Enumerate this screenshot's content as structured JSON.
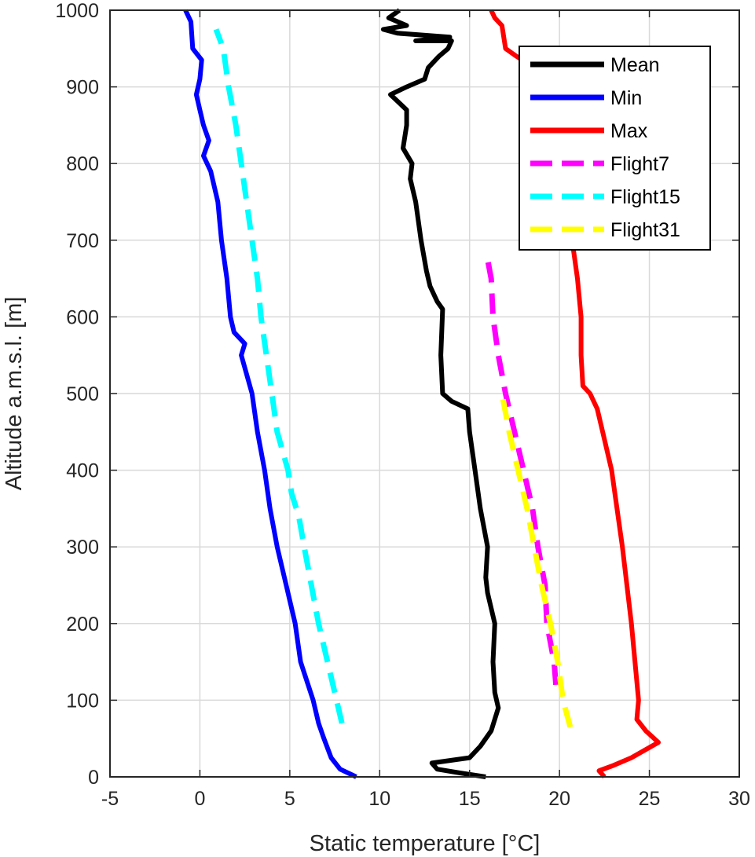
{
  "chart_data": {
    "type": "line",
    "xlabel": "Static temperature [°C]",
    "ylabel": "Altitude a.m.s.l. [m]",
    "xlim": [
      -5,
      30
    ],
    "ylim": [
      0,
      1000
    ],
    "xticks": [
      -5,
      0,
      5,
      10,
      15,
      20,
      25,
      30
    ],
    "yticks": [
      0,
      100,
      200,
      300,
      400,
      500,
      600,
      700,
      800,
      900,
      1000
    ],
    "xtick_labels": [
      "-5",
      "0",
      "5",
      "10",
      "15",
      "20",
      "25",
      "30"
    ],
    "ytick_labels": [
      "0",
      "100",
      "200",
      "300",
      "400",
      "500",
      "600",
      "700",
      "800",
      "900",
      "1000"
    ],
    "grid": true,
    "legend_position": "top-right",
    "series": [
      {
        "name": "Mean",
        "color": "#000000",
        "style": "solid",
        "points": [
          [
            15.9,
            0
          ],
          [
            14.5,
            5
          ],
          [
            13.2,
            10
          ],
          [
            12.9,
            18
          ],
          [
            15.0,
            25
          ],
          [
            15.6,
            40
          ],
          [
            16.2,
            60
          ],
          [
            16.6,
            90
          ],
          [
            16.4,
            110
          ],
          [
            16.3,
            150
          ],
          [
            16.4,
            200
          ],
          [
            16.0,
            240
          ],
          [
            15.9,
            260
          ],
          [
            16.0,
            300
          ],
          [
            15.6,
            350
          ],
          [
            15.3,
            400
          ],
          [
            15.0,
            450
          ],
          [
            14.9,
            480
          ],
          [
            14.0,
            490
          ],
          [
            13.5,
            500
          ],
          [
            13.4,
            550
          ],
          [
            13.5,
            610
          ],
          [
            13.2,
            620
          ],
          [
            12.8,
            640
          ],
          [
            12.6,
            660
          ],
          [
            12.3,
            700
          ],
          [
            12.0,
            750
          ],
          [
            11.7,
            780
          ],
          [
            11.8,
            800
          ],
          [
            11.3,
            820
          ],
          [
            11.5,
            850
          ],
          [
            11.5,
            870
          ],
          [
            10.6,
            890
          ],
          [
            11.5,
            900
          ],
          [
            12.5,
            910
          ],
          [
            12.7,
            925
          ],
          [
            13.3,
            940
          ],
          [
            13.8,
            950
          ],
          [
            14.0,
            960
          ],
          [
            12.0,
            960
          ],
          [
            13.9,
            965
          ],
          [
            11.0,
            970
          ],
          [
            10.2,
            975
          ],
          [
            11.5,
            980
          ],
          [
            10.5,
            990
          ],
          [
            11.1,
            1000
          ]
        ]
      },
      {
        "name": "Min",
        "color": "#0000ff",
        "style": "solid",
        "points": [
          [
            8.7,
            0
          ],
          [
            7.8,
            10
          ],
          [
            7.3,
            25
          ],
          [
            6.9,
            50
          ],
          [
            6.6,
            70
          ],
          [
            6.3,
            100
          ],
          [
            5.6,
            150
          ],
          [
            5.3,
            200
          ],
          [
            4.8,
            250
          ],
          [
            4.3,
            300
          ],
          [
            3.9,
            350
          ],
          [
            3.6,
            400
          ],
          [
            3.2,
            450
          ],
          [
            2.9,
            500
          ],
          [
            2.3,
            550
          ],
          [
            2.5,
            565
          ],
          [
            1.9,
            580
          ],
          [
            1.7,
            600
          ],
          [
            1.5,
            650
          ],
          [
            1.2,
            700
          ],
          [
            1.0,
            750
          ],
          [
            0.6,
            790
          ],
          [
            0.2,
            810
          ],
          [
            0.5,
            830
          ],
          [
            0.2,
            850
          ],
          [
            0.0,
            870
          ],
          [
            -0.2,
            890
          ],
          [
            0.0,
            910
          ],
          [
            0.1,
            935
          ],
          [
            -0.4,
            950
          ],
          [
            -0.5,
            985
          ],
          [
            -0.8,
            1000
          ]
        ]
      },
      {
        "name": "Max",
        "color": "#ff0000",
        "style": "solid",
        "points": [
          [
            22.5,
            0
          ],
          [
            22.2,
            8
          ],
          [
            23.0,
            15
          ],
          [
            24.0,
            25
          ],
          [
            25.5,
            45
          ],
          [
            24.8,
            60
          ],
          [
            24.3,
            75
          ],
          [
            24.4,
            100
          ],
          [
            24.0,
            200
          ],
          [
            23.5,
            300
          ],
          [
            22.9,
            400
          ],
          [
            22.4,
            450
          ],
          [
            22.1,
            480
          ],
          [
            21.7,
            500
          ],
          [
            21.3,
            510
          ],
          [
            21.2,
            550
          ],
          [
            21.2,
            600
          ],
          [
            21.0,
            650
          ],
          [
            20.7,
            700
          ],
          [
            20.9,
            750
          ],
          [
            20.0,
            800
          ],
          [
            19.5,
            850
          ],
          [
            19.0,
            900
          ],
          [
            18.3,
            930
          ],
          [
            17.6,
            940
          ],
          [
            17.0,
            950
          ],
          [
            16.8,
            980
          ],
          [
            16.4,
            990
          ],
          [
            16.2,
            1000
          ]
        ]
      },
      {
        "name": "Flight7",
        "color": "#ff00ff",
        "style": "dashed",
        "points": [
          [
            19.8,
            120
          ],
          [
            19.7,
            150
          ],
          [
            19.3,
            200
          ],
          [
            19.2,
            250
          ],
          [
            18.8,
            300
          ],
          [
            18.5,
            350
          ],
          [
            18.0,
            400
          ],
          [
            17.5,
            450
          ],
          [
            17.0,
            500
          ],
          [
            16.6,
            550
          ],
          [
            16.3,
            600
          ],
          [
            16.2,
            650
          ],
          [
            16.0,
            675
          ]
        ]
      },
      {
        "name": "Flight15",
        "color": "#00ffff",
        "style": "dashed",
        "points": [
          [
            7.9,
            70
          ],
          [
            7.5,
            110
          ],
          [
            7.1,
            150
          ],
          [
            6.6,
            200
          ],
          [
            6.2,
            250
          ],
          [
            5.8,
            300
          ],
          [
            5.5,
            340
          ],
          [
            5.1,
            370
          ],
          [
            4.9,
            400
          ],
          [
            4.3,
            450
          ],
          [
            4.0,
            500
          ],
          [
            3.7,
            550
          ],
          [
            3.4,
            600
          ],
          [
            3.2,
            650
          ],
          [
            2.9,
            700
          ],
          [
            2.6,
            750
          ],
          [
            2.3,
            800
          ],
          [
            2.0,
            850
          ],
          [
            1.6,
            900
          ],
          [
            1.3,
            950
          ],
          [
            0.9,
            975
          ]
        ]
      },
      {
        "name": "Flight31",
        "color": "#ffff00",
        "style": "dashed",
        "points": [
          [
            20.6,
            65
          ],
          [
            20.2,
            100
          ],
          [
            19.9,
            150
          ],
          [
            19.5,
            200
          ],
          [
            19.0,
            250
          ],
          [
            18.6,
            300
          ],
          [
            18.2,
            350
          ],
          [
            17.7,
            400
          ],
          [
            17.2,
            450
          ],
          [
            16.8,
            500
          ]
        ]
      }
    ]
  }
}
